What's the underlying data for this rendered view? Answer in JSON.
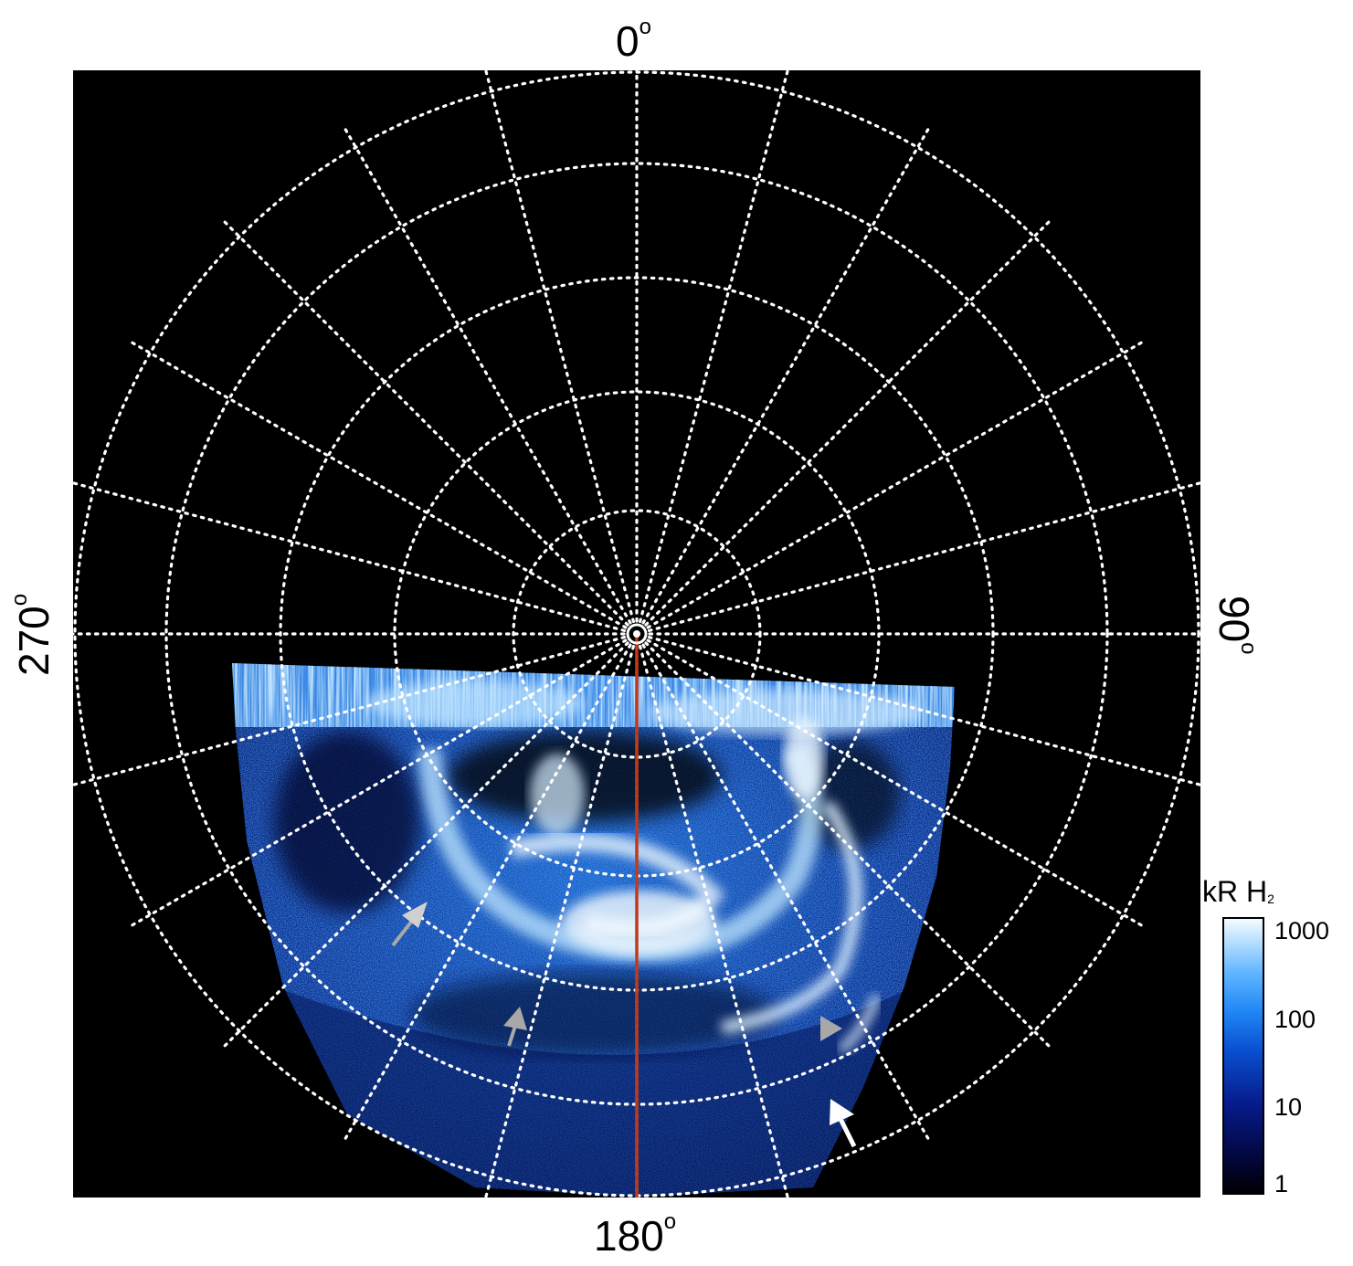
{
  "axis_labels": {
    "top": "0",
    "right": "90",
    "bottom": "180",
    "left": "270",
    "degree_symbol": "o"
  },
  "colorbar": {
    "title": "kR H",
    "title_subscript": "2",
    "ticks": [
      "1000",
      "100",
      "10",
      "1"
    ],
    "colors": [
      "#000000",
      "#02063a",
      "#061a8a",
      "#0a4fd0",
      "#1f86f5",
      "#5fb4ff",
      "#b8e0ff",
      "#f4fbff"
    ]
  },
  "colors": {
    "background": "#000000",
    "grid": "#ffffff",
    "meridian_line": "#c0391b",
    "arrow_white": "#ffffff",
    "arrow_gray": "#a8a8a8"
  },
  "annotations": {
    "arrows": [
      {
        "color": "gray",
        "shape": "arrow"
      },
      {
        "color": "gray",
        "shape": "arrow"
      },
      {
        "color": "gray",
        "shape": "triangle"
      },
      {
        "color": "white",
        "shape": "arrow"
      }
    ]
  }
}
